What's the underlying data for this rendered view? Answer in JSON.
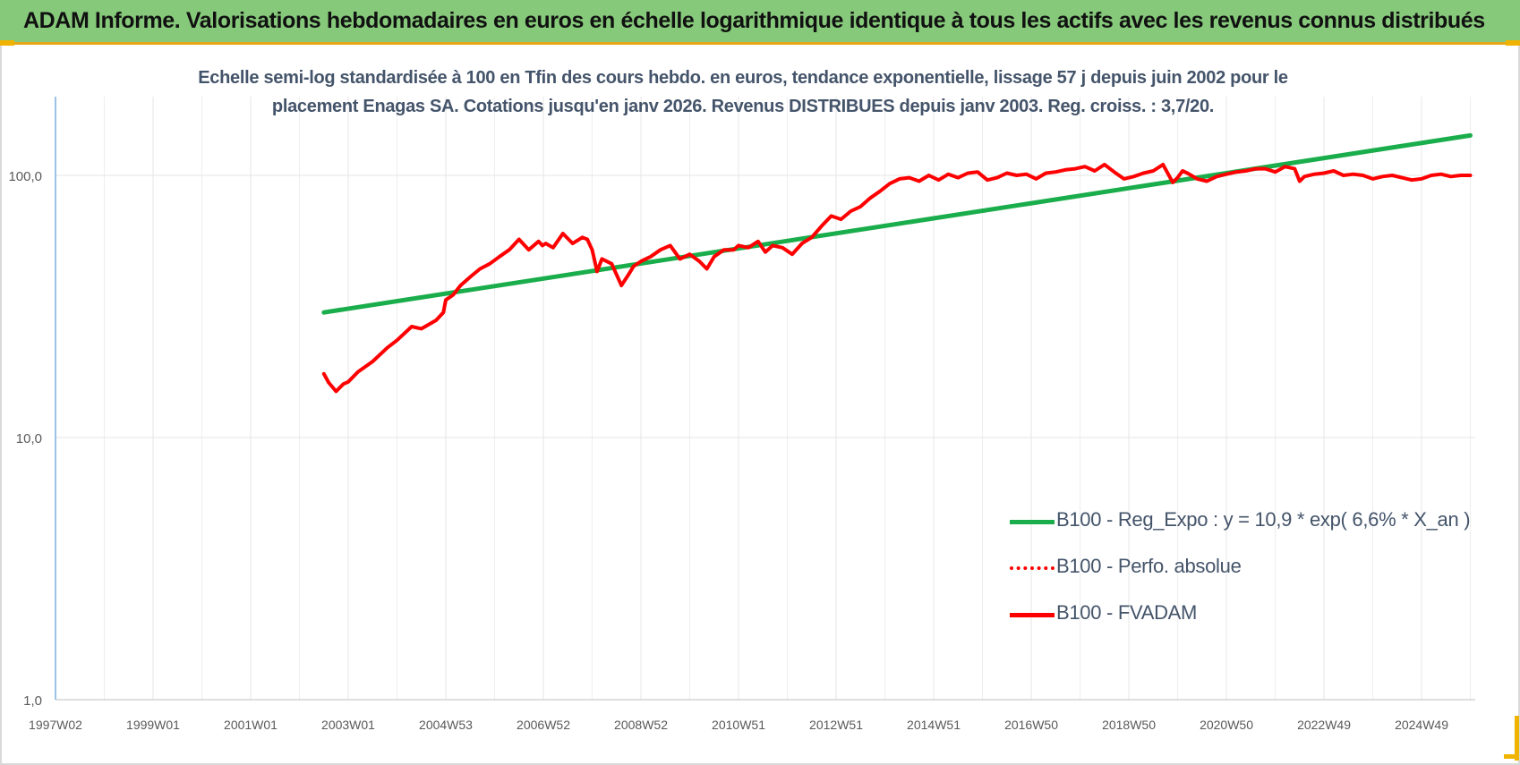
{
  "banner": {
    "title": "ADAM Informe. Valorisations hebdomadaires en euros en échelle logarithmique identique à tous les actifs avec les revenus connus distribués"
  },
  "colors": {
    "banner_bg": "#86c97a",
    "accent_corner": "#f0b400",
    "regression": "#1aad4b",
    "performance": "#ff0000",
    "fvadam": "#ff0000",
    "text": "#44546a",
    "grid": "#e6e6e6"
  },
  "chart_data": {
    "type": "line",
    "title_lines": [
      "Echelle semi-log standardisée à 100 en Tfin des cours hebdo. en euros, tendance exponentielle, lissage 57 j depuis juin 2002 pour le",
      "placement Enagas SA. Cotations jusqu'en janv 2026. Revenus DISTRIBUES depuis janv 2003. Reg. croiss. : 3,7/20."
    ],
    "y_scale": "log",
    "ylim": [
      1,
      200
    ],
    "y_ticks": [
      1,
      10,
      100
    ],
    "y_tick_labels": [
      "1,0",
      "10,0",
      "100,0"
    ],
    "xlim": [
      1997.0,
      2026.1
    ],
    "x_tick_positions": [
      1997.0,
      1999.0,
      2001.0,
      2003.0,
      2005.0,
      2007.0,
      2009.0,
      2011.0,
      2013.0,
      2015.0,
      2017.0,
      2019.0,
      2021.0,
      2023.0,
      2025.0
    ],
    "x_tick_labels": [
      "1997W02",
      "1999W01",
      "2001W01",
      "2003W01",
      "2004W53",
      "2006W52",
      "2008W52",
      "2010W51",
      "2012W51",
      "2014W51",
      "2016W50",
      "2018W50",
      "2020W50",
      "2022W49",
      "2024W49"
    ],
    "grid": "vertical and horizontal",
    "legend_position": "lower-right",
    "series": [
      {
        "name": "B100 - Reg_Expo : y = 10,9 * exp( 6,6% *  X_an )",
        "style": "solid",
        "color": "#1aad4b",
        "x": [
          2002.5,
          2026.0
        ],
        "y": [
          30.0,
          142.0
        ]
      },
      {
        "name": "B100 - Perfo. absolue",
        "style": "dotted",
        "color": "#ff0000",
        "x": [],
        "y": []
      },
      {
        "name": "B100 - FVADAM",
        "style": "solid",
        "color": "#ff0000",
        "x": [
          2002.5,
          2002.6,
          2002.75,
          2002.9,
          2003.0,
          2003.2,
          2003.5,
          2003.8,
          2004.0,
          2004.3,
          2004.5,
          2004.8,
          2004.95,
          2005.0,
          2005.15,
          2005.3,
          2005.5,
          2005.7,
          2005.9,
          2006.1,
          2006.3,
          2006.5,
          2006.7,
          2006.9,
          2006.98,
          2007.05,
          2007.2,
          2007.4,
          2007.6,
          2007.8,
          2007.9,
          2008.0,
          2008.1,
          2008.2,
          2008.4,
          2008.6,
          2008.75,
          2008.85,
          2009.0,
          2009.2,
          2009.4,
          2009.6,
          2009.8,
          2010.0,
          2010.2,
          2010.35,
          2010.5,
          2010.7,
          2010.9,
          2011.0,
          2011.2,
          2011.4,
          2011.55,
          2011.7,
          2011.9,
          2012.1,
          2012.3,
          2012.5,
          2012.7,
          2012.9,
          2013.1,
          2013.3,
          2013.5,
          2013.7,
          2013.9,
          2014.1,
          2014.3,
          2014.5,
          2014.7,
          2014.9,
          2015.1,
          2015.3,
          2015.5,
          2015.7,
          2015.9,
          2016.1,
          2016.3,
          2016.5,
          2016.7,
          2016.9,
          2017.1,
          2017.3,
          2017.5,
          2017.7,
          2017.9,
          2018.1,
          2018.3,
          2018.5,
          2018.7,
          2018.9,
          2019.1,
          2019.3,
          2019.5,
          2019.7,
          2019.9,
          2020.0,
          2020.1,
          2020.2,
          2020.4,
          2020.6,
          2020.8,
          2021.0,
          2021.2,
          2021.4,
          2021.6,
          2021.8,
          2022.0,
          2022.2,
          2022.4,
          2022.5,
          2022.6,
          2022.8,
          2023.0,
          2023.2,
          2023.4,
          2023.6,
          2023.8,
          2024.0,
          2024.2,
          2024.4,
          2024.6,
          2024.8,
          2025.0,
          2025.2,
          2025.4,
          2025.6,
          2025.8,
          2026.0
        ],
        "y": [
          17.5,
          16.2,
          15.0,
          16.0,
          16.3,
          17.8,
          19.5,
          22.0,
          23.5,
          26.5,
          26.0,
          28.0,
          30.0,
          33.5,
          35.0,
          38.0,
          41.0,
          44.0,
          46.0,
          49.0,
          52.0,
          57.0,
          52.0,
          56.0,
          54.0,
          55.0,
          53.0,
          60.0,
          55.0,
          58.0,
          57.0,
          52.0,
          43.0,
          48.0,
          46.0,
          38.0,
          42.0,
          45.0,
          47.0,
          49.0,
          52.0,
          54.0,
          48.0,
          50.0,
          47.0,
          44.0,
          49.0,
          52.0,
          52.0,
          54.0,
          53.0,
          56.0,
          51.0,
          54.0,
          53.0,
          50.0,
          55.0,
          58.0,
          64.0,
          70.0,
          68.0,
          73.0,
          76.0,
          82.0,
          87.0,
          93.0,
          97.0,
          98.0,
          95.0,
          100.0,
          96.0,
          101.0,
          98.0,
          102.0,
          103.0,
          96.0,
          98.0,
          102.0,
          100.0,
          101.0,
          97.0,
          102.0,
          103.0,
          105.0,
          106.0,
          108.0,
          104.0,
          110.0,
          103.0,
          97.0,
          99.0,
          102.0,
          104.0,
          110.0,
          94.0,
          98.0,
          104.0,
          102.0,
          97.0,
          95.0,
          99.0,
          101.0,
          103.0,
          104.0,
          106.0,
          106.0,
          103.0,
          108.0,
          106.0,
          95.0,
          99.0,
          101.0,
          102.0,
          104.0,
          100.0,
          101.0,
          100.0,
          97.0,
          99.0,
          100.0,
          98.0,
          96.0,
          97.0,
          100.0,
          101.0,
          99.0,
          100.0,
          100.0
        ]
      }
    ]
  }
}
